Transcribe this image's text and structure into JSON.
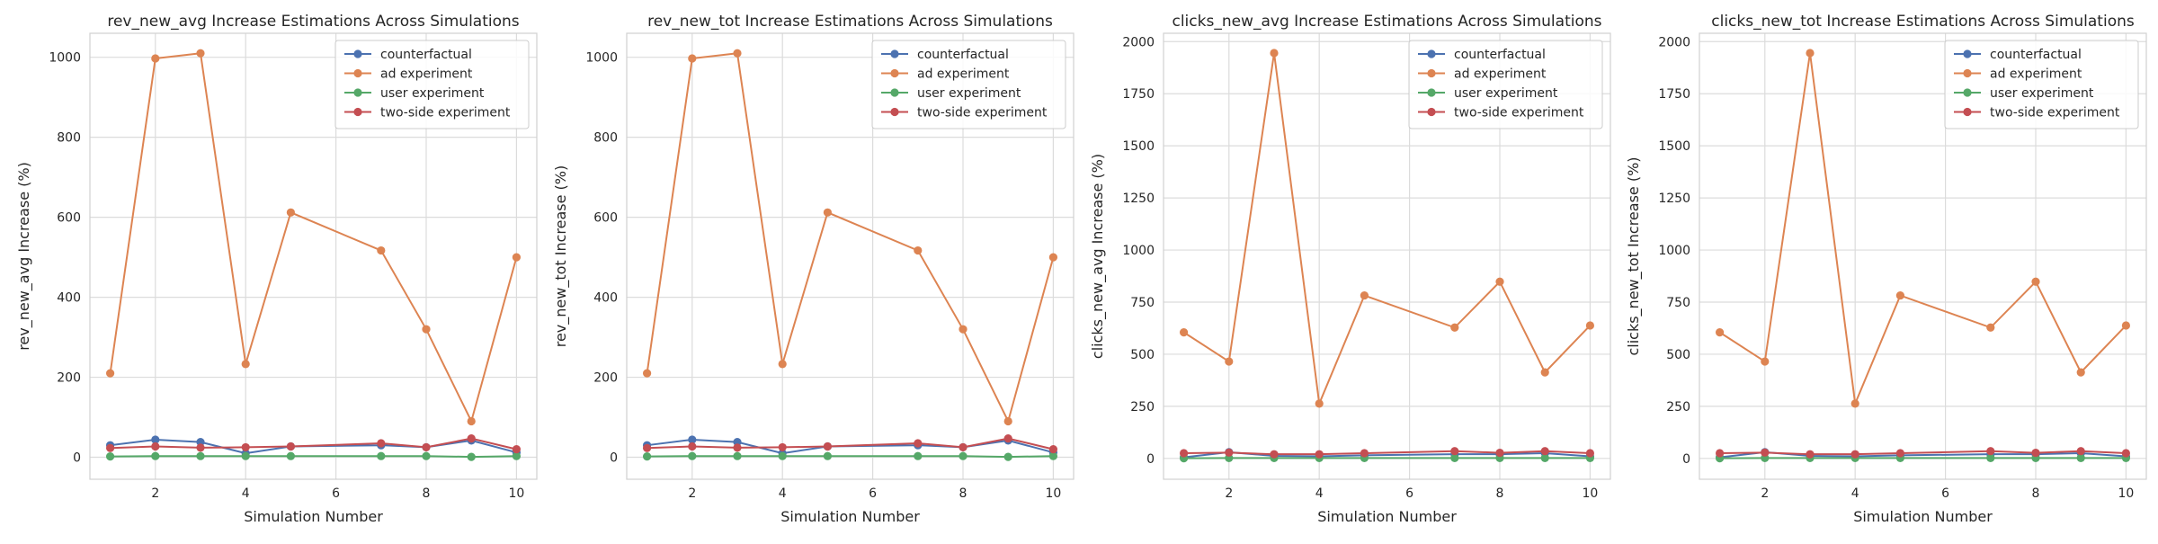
{
  "colors": {
    "counterfactual": "#4c72b0",
    "ad_experiment": "#dd8452",
    "user_experiment": "#55a868",
    "two_side_experiment": "#c44e52",
    "grid": "#dcdcdc",
    "axis": "#d0d0d0",
    "legend_border": "#cccccc"
  },
  "chart_data": [
    {
      "type": "line",
      "title": "rev_new_avg Increase Estimations Across Simulations",
      "xlabel": "Simulation Number",
      "ylabel": "rev_new_avg Increase (%)",
      "x": [
        1,
        2,
        3,
        4,
        5,
        7,
        8,
        9,
        10
      ],
      "xlim": [
        0.55,
        10.45
      ],
      "ylim": [
        -55,
        1060
      ],
      "xticks": [
        2,
        4,
        6,
        8,
        10
      ],
      "yticks": [
        0,
        200,
        400,
        600,
        800,
        1000
      ],
      "grid": true,
      "legend_position": "top-right",
      "series": [
        {
          "name": "counterfactual",
          "key": "counterfactual",
          "values": [
            30,
            44,
            38,
            10,
            27,
            30,
            25,
            42,
            12
          ]
        },
        {
          "name": "ad experiment",
          "key": "ad_experiment",
          "values": [
            210,
            997,
            1010,
            233,
            612,
            517,
            320,
            90,
            500
          ]
        },
        {
          "name": "user experiment",
          "key": "user_experiment",
          "values": [
            2,
            3,
            3,
            3,
            3,
            3,
            3,
            1,
            3
          ]
        },
        {
          "name": "two-side experiment",
          "key": "two_side_experiment",
          "values": [
            23,
            27,
            24,
            25,
            27,
            35,
            25,
            47,
            20
          ]
        }
      ]
    },
    {
      "type": "line",
      "title": "rev_new_tot Increase Estimations Across Simulations",
      "xlabel": "Simulation Number",
      "ylabel": "rev_new_tot Increase (%)",
      "x": [
        1,
        2,
        3,
        4,
        5,
        7,
        8,
        9,
        10
      ],
      "xlim": [
        0.55,
        10.45
      ],
      "ylim": [
        -55,
        1060
      ],
      "xticks": [
        2,
        4,
        6,
        8,
        10
      ],
      "yticks": [
        0,
        200,
        400,
        600,
        800,
        1000
      ],
      "grid": true,
      "legend_position": "top-right",
      "series": [
        {
          "name": "counterfactual",
          "key": "counterfactual",
          "values": [
            30,
            44,
            38,
            10,
            27,
            30,
            25,
            42,
            12
          ]
        },
        {
          "name": "ad experiment",
          "key": "ad_experiment",
          "values": [
            210,
            997,
            1010,
            233,
            612,
            517,
            320,
            90,
            500
          ]
        },
        {
          "name": "user experiment",
          "key": "user_experiment",
          "values": [
            2,
            3,
            3,
            3,
            3,
            3,
            3,
            1,
            3
          ]
        },
        {
          "name": "two-side experiment",
          "key": "two_side_experiment",
          "values": [
            23,
            27,
            24,
            25,
            27,
            35,
            25,
            47,
            20
          ]
        }
      ]
    },
    {
      "type": "line",
      "title": "clicks_new_avg Increase Estimations Across Simulations",
      "xlabel": "Simulation Number",
      "ylabel": "clicks_new_avg Increase (%)",
      "x": [
        1,
        2,
        3,
        4,
        5,
        7,
        8,
        9,
        10
      ],
      "xlim": [
        0.55,
        10.45
      ],
      "ylim": [
        -100,
        2040
      ],
      "xticks": [
        2,
        4,
        6,
        8,
        10
      ],
      "yticks": [
        0,
        250,
        500,
        750,
        1000,
        1250,
        1500,
        1750,
        2000
      ],
      "grid": true,
      "legend_position": "top-right",
      "series": [
        {
          "name": "counterfactual",
          "key": "counterfactual",
          "values": [
            5,
            30,
            12,
            10,
            15,
            20,
            20,
            25,
            10
          ]
        },
        {
          "name": "ad experiment",
          "key": "ad_experiment",
          "values": [
            605,
            465,
            1945,
            263,
            782,
            628,
            848,
            413,
            638
          ]
        },
        {
          "name": "user experiment",
          "key": "user_experiment",
          "values": [
            1,
            2,
            2,
            2,
            2,
            2,
            2,
            2,
            2
          ]
        },
        {
          "name": "two-side experiment",
          "key": "two_side_experiment",
          "values": [
            25,
            28,
            20,
            20,
            25,
            35,
            27,
            35,
            25
          ]
        }
      ]
    },
    {
      "type": "line",
      "title": "clicks_new_tot Increase Estimations Across Simulations",
      "xlabel": "Simulation Number",
      "ylabel": "clicks_new_tot Increase (%)",
      "x": [
        1,
        2,
        3,
        4,
        5,
        7,
        8,
        9,
        10
      ],
      "xlim": [
        0.55,
        10.45
      ],
      "ylim": [
        -100,
        2040
      ],
      "xticks": [
        2,
        4,
        6,
        8,
        10
      ],
      "yticks": [
        0,
        250,
        500,
        750,
        1000,
        1250,
        1500,
        1750,
        2000
      ],
      "grid": true,
      "legend_position": "top-right",
      "series": [
        {
          "name": "counterfactual",
          "key": "counterfactual",
          "values": [
            5,
            30,
            12,
            10,
            15,
            20,
            20,
            25,
            10
          ]
        },
        {
          "name": "ad experiment",
          "key": "ad_experiment",
          "values": [
            605,
            465,
            1945,
            263,
            782,
            628,
            848,
            413,
            638
          ]
        },
        {
          "name": "user experiment",
          "key": "user_experiment",
          "values": [
            1,
            2,
            2,
            2,
            2,
            2,
            2,
            2,
            2
          ]
        },
        {
          "name": "two-side experiment",
          "key": "two_side_experiment",
          "values": [
            25,
            28,
            20,
            20,
            25,
            35,
            27,
            35,
            25
          ]
        }
      ]
    }
  ]
}
